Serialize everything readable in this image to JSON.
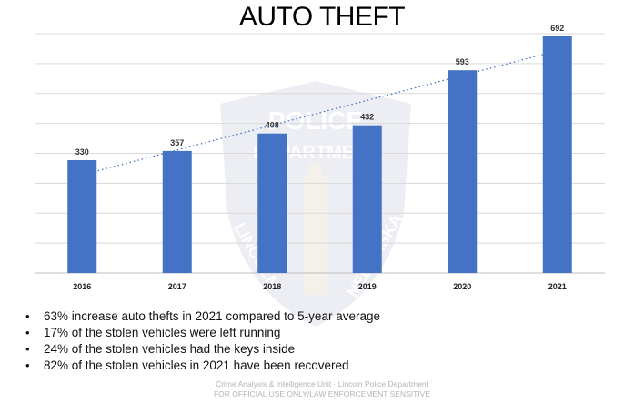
{
  "page": {
    "title": "AUTO THEFT"
  },
  "chart_data": {
    "type": "bar",
    "categories": [
      "2016",
      "2017",
      "2018",
      "2019",
      "2020",
      "2021"
    ],
    "values": [
      330,
      357,
      408,
      432,
      593,
      692
    ],
    "data_labels": [
      "330",
      "357",
      "408",
      "432",
      "593",
      "692"
    ],
    "ylim": [
      0,
      700
    ],
    "grid": true,
    "trendline": "linear, dotted",
    "colors": {
      "bar": "#4472c4",
      "trend": "#4472c4",
      "grid": "#d9d9d9"
    }
  },
  "bullets": [
    "63% increase auto thefts in 2021 compared to 5-year average",
    "17% of the stolen vehicles were left running",
    "24% of the stolen vehicles had the keys inside",
    "82% of the stolen vehicles in 2021 have been recovered"
  ],
  "footer": {
    "line1": "Crime Analysis & Intelligence Unit · Lincoln Police Department",
    "line2": "FOR OFFICIAL USE ONLY/LAW ENFORCEMENT SENSITIVE"
  },
  "watermark": {
    "icon": "police-badge-icon",
    "text": [
      "POLICE",
      "DEPARTMENT",
      "LINCOLN",
      "NEBRASKA"
    ]
  }
}
